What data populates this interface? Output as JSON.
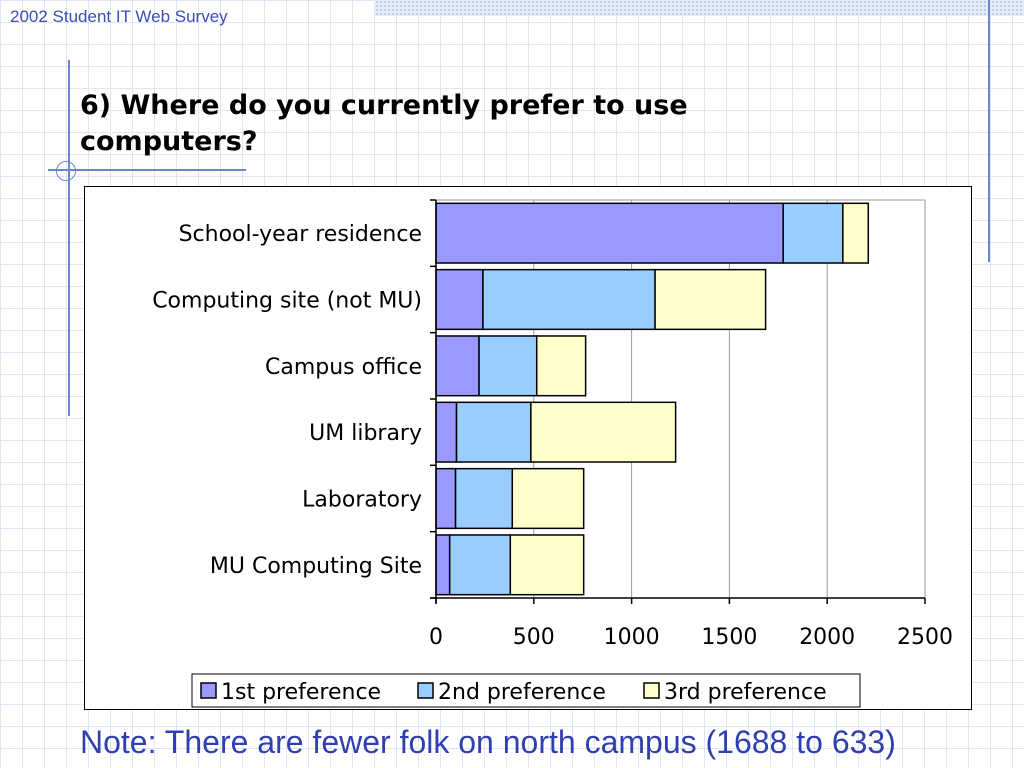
{
  "header": {
    "text": "2002 Student IT Web Survey"
  },
  "slide": {
    "title": "6) Where do you currently prefer to use computers?",
    "note": "Note: There are fewer folk on north campus (1688 to 633)"
  },
  "colors": {
    "series": [
      "#9999ff",
      "#99ccff",
      "#ffffcc"
    ],
    "title_text": "#000000",
    "note_text": "#2f3fb0",
    "header_text": "#3a4fb0",
    "decoration": "#6e86c9"
  },
  "chart_data": {
    "type": "bar",
    "orientation": "horizontal",
    "stacked": true,
    "categories": [
      "School-year residence",
      "Computing site (not MU)",
      "Campus office",
      "UM library",
      "Laboratory",
      "MU Computing Site"
    ],
    "series": [
      {
        "name": "1st preference",
        "values": [
          1775,
          240,
          220,
          105,
          100,
          70
        ]
      },
      {
        "name": "2nd preference",
        "values": [
          305,
          880,
          295,
          380,
          290,
          310
        ]
      },
      {
        "name": "3rd preference",
        "values": [
          130,
          565,
          250,
          740,
          365,
          375
        ]
      }
    ],
    "xlim": [
      0,
      2500
    ],
    "xticks": [
      0,
      500,
      1000,
      1500,
      2000,
      2500
    ],
    "grid": true,
    "legend_position": "bottom"
  }
}
